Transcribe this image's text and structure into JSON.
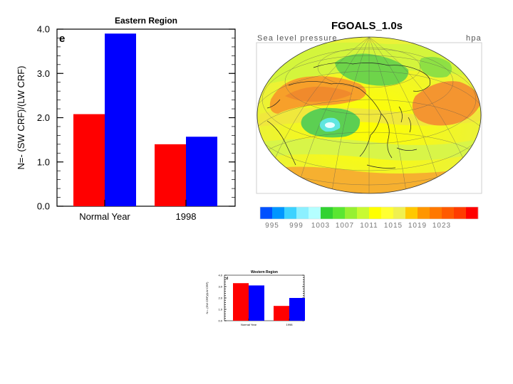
{
  "chart_data": [
    {
      "type": "bar",
      "title": "Eastern Region",
      "panel_label": "e",
      "categories": [
        "Normal Year",
        "1998"
      ],
      "series": [
        {
          "name": "red",
          "color": "#ff0000",
          "values": [
            2.08,
            1.4
          ]
        },
        {
          "name": "blue",
          "color": "#0000ff",
          "values": [
            3.9,
            1.57
          ]
        }
      ],
      "xlabel": "",
      "ylabel": "N=- (SW CRF)/(LW CRF)",
      "ylim": [
        0,
        4
      ],
      "yticks": [
        0,
        1,
        2,
        3,
        4
      ],
      "ytick_labels": [
        "0.0",
        "1.0",
        "2.0",
        "3.0",
        "4.0"
      ]
    },
    {
      "type": "bar",
      "title": "Western Region",
      "panel_label": "d",
      "categories": [
        "Normal Year",
        "1998"
      ],
      "series": [
        {
          "name": "red",
          "color": "#ff0000",
          "values": [
            3.3,
            1.3
          ]
        },
        {
          "name": "blue",
          "color": "#0000ff",
          "values": [
            3.1,
            2.0
          ]
        }
      ],
      "xlabel": "",
      "ylabel": "N=- (SW CRF)/(LW CRF)",
      "ylim": [
        0,
        4
      ],
      "yticks": [
        0,
        1,
        2,
        3,
        4
      ],
      "ytick_labels": [
        "0.0",
        "1.0",
        "2.0",
        "3.0",
        "4.0"
      ]
    }
  ],
  "map": {
    "title": "FGOALS_1.0s",
    "subtitle_left": "Sea level pressure",
    "subtitle_right": "hpa",
    "colorbar": {
      "colors": [
        "#0050ff",
        "#0096ff",
        "#3cd2ff",
        "#8cf0ff",
        "#b4ffff",
        "#32d232",
        "#5ae632",
        "#96f032",
        "#c8fa32",
        "#ffff00",
        "#ffff32",
        "#f0f050",
        "#ffc800",
        "#ff9600",
        "#ff7800",
        "#ff5a00",
        "#ff3c00",
        "#ff0000"
      ],
      "labels": [
        "995",
        "999",
        "1003",
        "1007",
        "1011",
        "1015",
        "1019",
        "1023"
      ]
    }
  }
}
